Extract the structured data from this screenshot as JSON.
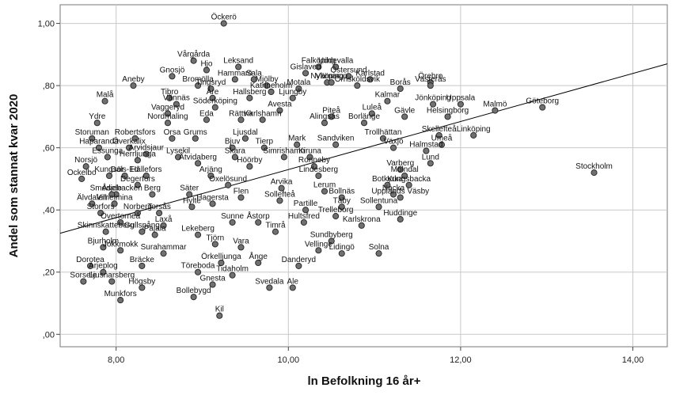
{
  "chart_data": {
    "type": "scatter",
    "title": "",
    "xlabel": "ln Befolkning 16 år+",
    "ylabel": "Andel som stannat kvar 2020",
    "xlim": [
      7.35,
      14.4
    ],
    "ylim": [
      -0.04,
      1.06
    ],
    "xticks": [
      "8,00",
      "10,00",
      "12,00",
      "14,00"
    ],
    "xtick_values": [
      8,
      10,
      12,
      14
    ],
    "yticks": [
      ",00",
      ",20",
      ",40",
      ",60",
      ",80",
      "1,00"
    ],
    "ytick_values": [
      0,
      0.2,
      0.4,
      0.6,
      0.8,
      1.0
    ],
    "grid": true,
    "fit_line": {
      "x": [
        7.35,
        14.4
      ],
      "y": [
        0.325,
        0.87
      ]
    },
    "labeled_points": [
      {
        "name": "Öckerö",
        "x": 9.25,
        "y": 1.0
      },
      {
        "name": "Falköping",
        "x": 10.35,
        "y": 0.86
      },
      {
        "name": "Uddevalla",
        "x": 10.55,
        "y": 0.86
      },
      {
        "name": "Leksand",
        "x": 9.42,
        "y": 0.86
      },
      {
        "name": "Gislaved",
        "x": 10.2,
        "y": 0.84
      },
      {
        "name": "Östersund",
        "x": 10.7,
        "y": 0.83
      },
      {
        "name": "Hjo",
        "x": 9.05,
        "y": 0.85
      },
      {
        "name": "Hammarö",
        "x": 9.38,
        "y": 0.82
      },
      {
        "name": "Sala",
        "x": 9.6,
        "y": 0.82
      },
      {
        "name": "Nyköping",
        "x": 10.45,
        "y": 0.81
      },
      {
        "name": "Karlstad",
        "x": 10.95,
        "y": 0.82
      },
      {
        "name": "Vårgårda",
        "x": 8.9,
        "y": 0.88
      },
      {
        "name": "Katrineholm",
        "x": 9.8,
        "y": 0.78
      },
      {
        "name": "Värnamo",
        "x": 10.5,
        "y": 0.81
      },
      {
        "name": "Gnosjö",
        "x": 8.65,
        "y": 0.83
      },
      {
        "name": "Tingsryd",
        "x": 9.1,
        "y": 0.79
      },
      {
        "name": "Mjölby",
        "x": 9.75,
        "y": 0.8
      },
      {
        "name": "Motala",
        "x": 10.12,
        "y": 0.79
      },
      {
        "name": "Borås",
        "x": 11.3,
        "y": 0.79
      },
      {
        "name": "Örebro",
        "x": 11.65,
        "y": 0.81
      },
      {
        "name": "Aneby",
        "x": 8.2,
        "y": 0.8
      },
      {
        "name": "Bromölla",
        "x": 8.95,
        "y": 0.8
      },
      {
        "name": "Örnsköldsvik",
        "x": 10.8,
        "y": 0.8
      },
      {
        "name": "Västerås",
        "x": 11.65,
        "y": 0.8
      },
      {
        "name": "Malå",
        "x": 7.87,
        "y": 0.75
      },
      {
        "name": "Tibro",
        "x": 8.62,
        "y": 0.76
      },
      {
        "name": "Åre",
        "x": 9.12,
        "y": 0.76
      },
      {
        "name": "Hallsberg",
        "x": 9.55,
        "y": 0.76
      },
      {
        "name": "Ljungby",
        "x": 10.05,
        "y": 0.76
      },
      {
        "name": "Kalmar",
        "x": 11.15,
        "y": 0.75
      },
      {
        "name": "Jönköping",
        "x": 11.68,
        "y": 0.74
      },
      {
        "name": "Uppsala",
        "x": 12.0,
        "y": 0.74
      },
      {
        "name": "Göteborg",
        "x": 12.95,
        "y": 0.73
      },
      {
        "name": "Vännäs",
        "x": 8.7,
        "y": 0.74
      },
      {
        "name": "Söderköping",
        "x": 9.15,
        "y": 0.73
      },
      {
        "name": "Vaggeryd",
        "x": 8.6,
        "y": 0.71
      },
      {
        "name": "Avesta",
        "x": 9.9,
        "y": 0.72
      },
      {
        "name": "Luleå",
        "x": 10.97,
        "y": 0.71
      },
      {
        "name": "Gävle",
        "x": 11.35,
        "y": 0.7
      },
      {
        "name": "Helsingborg",
        "x": 11.85,
        "y": 0.7
      },
      {
        "name": "Malmö",
        "x": 12.4,
        "y": 0.72
      },
      {
        "name": "Piteå",
        "x": 10.5,
        "y": 0.7
      },
      {
        "name": "Ydre",
        "x": 7.78,
        "y": 0.68
      },
      {
        "name": "Nordmaling",
        "x": 8.6,
        "y": 0.68
      },
      {
        "name": "Eda",
        "x": 9.05,
        "y": 0.69
      },
      {
        "name": "Rättvik",
        "x": 9.45,
        "y": 0.69
      },
      {
        "name": "Karlshamn",
        "x": 9.7,
        "y": 0.69
      },
      {
        "name": "Alingsås",
        "x": 10.42,
        "y": 0.68
      },
      {
        "name": "Borlänge",
        "x": 10.88,
        "y": 0.68
      },
      {
        "name": "Storuman",
        "x": 7.72,
        "y": 0.63
      },
      {
        "name": "Robertsfors",
        "x": 8.22,
        "y": 0.63
      },
      {
        "name": "Orsa",
        "x": 8.65,
        "y": 0.63
      },
      {
        "name": "Grums",
        "x": 8.92,
        "y": 0.63
      },
      {
        "name": "Ljusdal",
        "x": 9.5,
        "y": 0.63
      },
      {
        "name": "Trollhättan",
        "x": 11.1,
        "y": 0.63
      },
      {
        "name": "Skellefteå",
        "x": 11.75,
        "y": 0.64
      },
      {
        "name": "Linköping",
        "x": 12.15,
        "y": 0.64
      },
      {
        "name": "Haparanda",
        "x": 7.8,
        "y": 0.6
      },
      {
        "name": "Överkalix",
        "x": 8.15,
        "y": 0.6
      },
      {
        "name": "Bjuv",
        "x": 9.35,
        "y": 0.6
      },
      {
        "name": "Mark",
        "x": 10.1,
        "y": 0.61
      },
      {
        "name": "Sandviken",
        "x": 10.55,
        "y": 0.61
      },
      {
        "name": "Växjö",
        "x": 11.22,
        "y": 0.6
      },
      {
        "name": "Umeå",
        "x": 11.78,
        "y": 0.61
      },
      {
        "name": "Arvidsjaur",
        "x": 8.35,
        "y": 0.58
      },
      {
        "name": "Lysekil",
        "x": 8.72,
        "y": 0.57
      },
      {
        "name": "Tierp",
        "x": 9.72,
        "y": 0.6
      },
      {
        "name": "Halmstad",
        "x": 11.6,
        "y": 0.59
      },
      {
        "name": "Essunga",
        "x": 7.9,
        "y": 0.57
      },
      {
        "name": "Herrljunga",
        "x": 8.25,
        "y": 0.56
      },
      {
        "name": "Skara",
        "x": 9.38,
        "y": 0.57
      },
      {
        "name": "Simrishamn",
        "x": 9.95,
        "y": 0.57
      },
      {
        "name": "Kiruna",
        "x": 10.25,
        "y": 0.57
      },
      {
        "name": "Stockholm",
        "x": 13.55,
        "y": 0.52
      },
      {
        "name": "Norsjö",
        "x": 7.65,
        "y": 0.54
      },
      {
        "name": "Åtvidaberg",
        "x": 8.95,
        "y": 0.55
      },
      {
        "name": "Höörby",
        "x": 9.55,
        "y": 0.54
      },
      {
        "name": "Ronneby",
        "x": 10.3,
        "y": 0.54
      },
      {
        "name": "Lund",
        "x": 11.65,
        "y": 0.55
      },
      {
        "name": "Kungsör",
        "x": 7.92,
        "y": 0.51
      },
      {
        "name": "Dals-Ed",
        "x": 8.1,
        "y": 0.51
      },
      {
        "name": "Hällefors",
        "x": 8.35,
        "y": 0.51
      },
      {
        "name": "Varberg",
        "x": 11.3,
        "y": 0.53
      },
      {
        "name": "Ockelbo",
        "x": 7.6,
        "y": 0.5
      },
      {
        "name": "Arjäng",
        "x": 9.1,
        "y": 0.51
      },
      {
        "name": "Lindesberg",
        "x": 10.35,
        "y": 0.51
      },
      {
        "name": "Mölndal",
        "x": 11.35,
        "y": 0.51
      },
      {
        "name": "Degerfors",
        "x": 8.25,
        "y": 0.48
      },
      {
        "name": "Oxelösund",
        "x": 9.3,
        "y": 0.48
      },
      {
        "name": "Botkyrka",
        "x": 11.15,
        "y": 0.48
      },
      {
        "name": "Kungsbacka",
        "x": 11.4,
        "y": 0.48
      },
      {
        "name": "Smedjebacken",
        "x": 8.0,
        "y": 0.45
      },
      {
        "name": "Åsele",
        "x": 7.95,
        "y": 0.45
      },
      {
        "name": "Berg",
        "x": 8.42,
        "y": 0.45
      },
      {
        "name": "Säter",
        "x": 8.85,
        "y": 0.45
      },
      {
        "name": "Arvika",
        "x": 9.92,
        "y": 0.47
      },
      {
        "name": "Lerum",
        "x": 10.42,
        "y": 0.46
      },
      {
        "name": "Nacka",
        "x": 11.22,
        "y": 0.45
      },
      {
        "name": "Vilhelmina",
        "x": 7.98,
        "y": 0.42
      },
      {
        "name": "Flen",
        "x": 9.45,
        "y": 0.44
      },
      {
        "name": "Sollefteå",
        "x": 9.9,
        "y": 0.43
      },
      {
        "name": "Bollnäs",
        "x": 10.62,
        "y": 0.44
      },
      {
        "name": "Upplands Väsby",
        "x": 11.3,
        "y": 0.44
      },
      {
        "name": "Älvdalen",
        "x": 7.72,
        "y": 0.42
      },
      {
        "name": "Hylte",
        "x": 8.88,
        "y": 0.41
      },
      {
        "name": "Hagersta",
        "x": 9.12,
        "y": 0.42
      },
      {
        "name": "Täby",
        "x": 10.62,
        "y": 0.41
      },
      {
        "name": "Sollentuna",
        "x": 11.05,
        "y": 0.41
      },
      {
        "name": "Partille",
        "x": 10.2,
        "y": 0.4
      },
      {
        "name": "Storfors",
        "x": 7.82,
        "y": 0.39
      },
      {
        "name": "Norberg",
        "x": 8.25,
        "y": 0.39
      },
      {
        "name": "Torsås",
        "x": 8.5,
        "y": 0.39
      },
      {
        "name": "Trelleborg",
        "x": 10.55,
        "y": 0.38
      },
      {
        "name": "Huddinge",
        "x": 11.3,
        "y": 0.37
      },
      {
        "name": "Övertorneå",
        "x": 8.05,
        "y": 0.36
      },
      {
        "name": "Laxå",
        "x": 8.55,
        "y": 0.35
      },
      {
        "name": "Sunne",
        "x": 9.35,
        "y": 0.36
      },
      {
        "name": "Åstorp",
        "x": 9.65,
        "y": 0.36
      },
      {
        "name": "Hultsfred",
        "x": 10.18,
        "y": 0.36
      },
      {
        "name": "Karlskrona",
        "x": 10.85,
        "y": 0.35
      },
      {
        "name": "Skinnskatteberg",
        "x": 7.88,
        "y": 0.33
      },
      {
        "name": "Gullspång",
        "x": 8.3,
        "y": 0.33
      },
      {
        "name": "Pajala",
        "x": 8.45,
        "y": 0.32
      },
      {
        "name": "Lekeberg",
        "x": 8.95,
        "y": 0.32
      },
      {
        "name": "Timrå",
        "x": 9.85,
        "y": 0.33
      },
      {
        "name": "Sundbyberg",
        "x": 10.5,
        "y": 0.3
      },
      {
        "name": "Bjurholm",
        "x": 7.85,
        "y": 0.28
      },
      {
        "name": "Tjörn",
        "x": 9.15,
        "y": 0.29
      },
      {
        "name": "Vara",
        "x": 9.45,
        "y": 0.28
      },
      {
        "name": "Jokkmokk",
        "x": 8.05,
        "y": 0.27
      },
      {
        "name": "Surahammar",
        "x": 8.55,
        "y": 0.26
      },
      {
        "name": "Vellinge",
        "x": 10.35,
        "y": 0.27
      },
      {
        "name": "Lidingö",
        "x": 10.62,
        "y": 0.26
      },
      {
        "name": "Solna",
        "x": 11.05,
        "y": 0.26
      },
      {
        "name": "Dorotea",
        "x": 7.7,
        "y": 0.22
      },
      {
        "name": "Bräcke",
        "x": 8.3,
        "y": 0.22
      },
      {
        "name": "Örkelljunga",
        "x": 9.22,
        "y": 0.23
      },
      {
        "name": "Ånge",
        "x": 9.65,
        "y": 0.23
      },
      {
        "name": "Danderyd",
        "x": 10.12,
        "y": 0.22
      },
      {
        "name": "Arjeplog",
        "x": 7.85,
        "y": 0.2
      },
      {
        "name": "Töreboda",
        "x": 8.95,
        "y": 0.2
      },
      {
        "name": "Tidaholm",
        "x": 9.35,
        "y": 0.19
      },
      {
        "name": "Sorsele",
        "x": 7.62,
        "y": 0.17
      },
      {
        "name": "Ljusnarsberg",
        "x": 7.95,
        "y": 0.17
      },
      {
        "name": "Högsby",
        "x": 8.3,
        "y": 0.15
      },
      {
        "name": "Gnesta",
        "x": 9.12,
        "y": 0.16
      },
      {
        "name": "Svedala",
        "x": 9.78,
        "y": 0.15
      },
      {
        "name": "Ale",
        "x": 10.05,
        "y": 0.15
      },
      {
        "name": "Bollebygd",
        "x": 8.9,
        "y": 0.12
      },
      {
        "name": "Munkfors",
        "x": 8.05,
        "y": 0.11
      },
      {
        "name": "Kil",
        "x": 9.2,
        "y": 0.06
      }
    ]
  }
}
